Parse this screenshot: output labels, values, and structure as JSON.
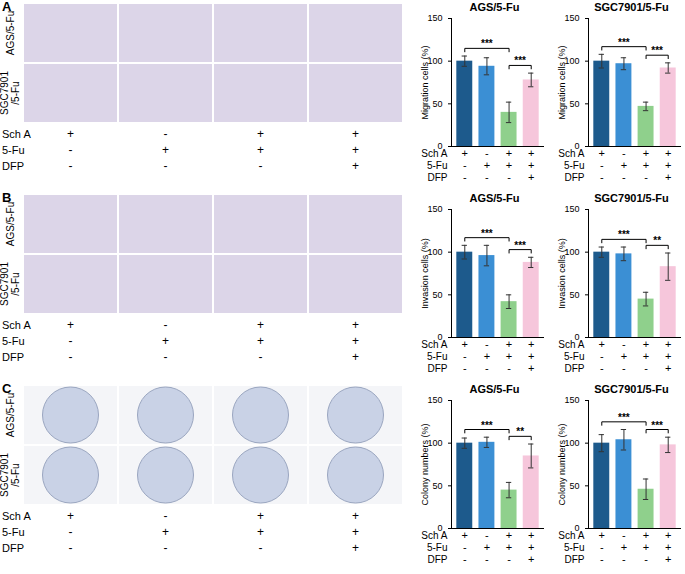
{
  "figure": {
    "panels": [
      {
        "label": "A",
        "image_rows": [
          [
            "AGS/5-Fu"
          ],
          [
            "SGC7901",
            "/5-Fu"
          ]
        ],
        "treatments": {
          "rows": [
            "Sch A",
            "5-Fu",
            "DFP"
          ],
          "marks": [
            [
              "+",
              "-",
              "+",
              "+"
            ],
            [
              "-",
              "+",
              "+",
              "+"
            ],
            [
              "-",
              "-",
              "-",
              "+"
            ]
          ]
        }
      },
      {
        "label": "B",
        "image_rows": [
          [
            "AGS/5-Fu"
          ],
          [
            "SGC7901",
            "/5-Fu"
          ]
        ],
        "treatments": {
          "rows": [
            "Sch A",
            "5-Fu",
            "DFP"
          ],
          "marks": [
            [
              "+",
              "-",
              "+",
              "+"
            ],
            [
              "-",
              "+",
              "+",
              "+"
            ],
            [
              "-",
              "-",
              "-",
              "+"
            ]
          ]
        }
      },
      {
        "label": "C",
        "image_rows": [
          [
            "AGS/5-Fu"
          ],
          [
            "SGC7901",
            "/5-Fu"
          ]
        ],
        "treatments": {
          "rows": [
            "Sch A",
            "5-Fu",
            "DFP"
          ],
          "marks": [
            [
              "+",
              "-",
              "+",
              "+"
            ],
            [
              "-",
              "+",
              "+",
              "+"
            ],
            [
              "-",
              "-",
              "-",
              "+"
            ]
          ]
        }
      }
    ]
  },
  "chart_data": [
    {
      "type": "bar",
      "title": "AGS/5-Fu",
      "y_label": "Migration cells (%)",
      "categories": [
        null,
        null,
        null,
        null
      ],
      "values": [
        100,
        94,
        40,
        78
      ],
      "errors": [
        6,
        10,
        12,
        8
      ],
      "colors": [
        "#1d5a8c",
        "#3b8fd4",
        "#8fd08c",
        "#f6c6db"
      ],
      "ylim": [
        0,
        150
      ],
      "yticks": [
        0,
        50,
        100,
        150
      ],
      "tick_labels": "y",
      "significance": [
        {
          "from": 0,
          "to": 2,
          "label": "***"
        },
        {
          "from": 2,
          "to": 3,
          "label": "***"
        }
      ],
      "treatments": {
        "rows": [
          "Sch A",
          "5-Fu",
          "DFP"
        ],
        "marks": [
          [
            "+",
            "-",
            "+",
            "+"
          ],
          [
            "-",
            "+",
            "+",
            "+"
          ],
          [
            "-",
            "-",
            "-",
            "+"
          ]
        ]
      }
    },
    {
      "type": "bar",
      "title": "SGC7901/5-Fu",
      "y_label": "Migration cells (%)",
      "categories": [
        null,
        null,
        null,
        null
      ],
      "values": [
        100,
        97,
        47,
        92
      ],
      "errors": [
        8,
        7,
        5,
        6
      ],
      "colors": [
        "#1d5a8c",
        "#3b8fd4",
        "#8fd08c",
        "#f6c6db"
      ],
      "ylim": [
        0,
        150
      ],
      "yticks": [
        0,
        50,
        100,
        150
      ],
      "tick_labels": "y",
      "significance": [
        {
          "from": 0,
          "to": 2,
          "label": "***"
        },
        {
          "from": 2,
          "to": 3,
          "label": "***"
        }
      ],
      "treatments": {
        "rows": [
          "Sch A",
          "5-Fu",
          "DFP"
        ],
        "marks": [
          [
            "+",
            "-",
            "+",
            "+"
          ],
          [
            "-",
            "+",
            "+",
            "+"
          ],
          [
            "-",
            "-",
            "-",
            "+"
          ]
        ]
      }
    },
    {
      "type": "bar",
      "title": "AGS/5-Fu",
      "y_label": "Invasion cells (%)",
      "categories": [
        null,
        null,
        null,
        null
      ],
      "values": [
        100,
        96,
        42,
        88
      ],
      "errors": [
        8,
        12,
        8,
        6
      ],
      "colors": [
        "#1d5a8c",
        "#3b8fd4",
        "#8fd08c",
        "#f6c6db"
      ],
      "ylim": [
        0,
        150
      ],
      "yticks": [
        0,
        50,
        100,
        150
      ],
      "tick_labels": "y",
      "significance": [
        {
          "from": 0,
          "to": 2,
          "label": "***"
        },
        {
          "from": 2,
          "to": 3,
          "label": "***"
        }
      ],
      "treatments": {
        "rows": [
          "Sch A",
          "5-Fu",
          "DFP"
        ],
        "marks": [
          [
            "+",
            "-",
            "+",
            "+"
          ],
          [
            "-",
            "+",
            "+",
            "+"
          ],
          [
            "-",
            "-",
            "-",
            "+"
          ]
        ]
      }
    },
    {
      "type": "bar",
      "title": "SGC7901/5-Fu",
      "y_label": "Invasion cells (%)",
      "categories": [
        null,
        null,
        null,
        null
      ],
      "values": [
        100,
        98,
        45,
        83
      ],
      "errors": [
        6,
        8,
        8,
        16
      ],
      "colors": [
        "#1d5a8c",
        "#3b8fd4",
        "#8fd08c",
        "#f6c6db"
      ],
      "ylim": [
        0,
        150
      ],
      "yticks": [
        0,
        50,
        100,
        150
      ],
      "tick_labels": "y",
      "significance": [
        {
          "from": 0,
          "to": 2,
          "label": "***"
        },
        {
          "from": 2,
          "to": 3,
          "label": "**"
        }
      ],
      "treatments": {
        "rows": [
          "Sch A",
          "5-Fu",
          "DFP"
        ],
        "marks": [
          [
            "+",
            "-",
            "+",
            "+"
          ],
          [
            "-",
            "+",
            "+",
            "+"
          ],
          [
            "-",
            "-",
            "-",
            "+"
          ]
        ]
      }
    },
    {
      "type": "bar",
      "title": "AGS/5-Fu",
      "y_label": "Colony numbers (%)",
      "categories": [
        null,
        null,
        null,
        null
      ],
      "values": [
        100,
        101,
        45,
        85
      ],
      "errors": [
        6,
        6,
        9,
        14
      ],
      "colors": [
        "#1d5a8c",
        "#3b8fd4",
        "#8fd08c",
        "#f6c6db"
      ],
      "ylim": [
        0,
        150
      ],
      "yticks": [
        0,
        50,
        100,
        150
      ],
      "tick_labels": "y",
      "significance": [
        {
          "from": 0,
          "to": 2,
          "label": "***"
        },
        {
          "from": 2,
          "to": 3,
          "label": "**"
        }
      ],
      "treatments": {
        "rows": [
          "Sch A",
          "5-Fu",
          "DFP"
        ],
        "marks": [
          [
            "+",
            "-",
            "+",
            "+"
          ],
          [
            "-",
            "+",
            "+",
            "+"
          ],
          [
            "-",
            "-",
            "-",
            "+"
          ]
        ]
      }
    },
    {
      "type": "bar",
      "title": "SGC7901/5-Fu",
      "y_label": "Colony numbers (%)",
      "categories": [
        null,
        null,
        null,
        null
      ],
      "values": [
        100,
        104,
        46,
        98
      ],
      "errors": [
        10,
        12,
        12,
        9
      ],
      "colors": [
        "#1d5a8c",
        "#3b8fd4",
        "#8fd08c",
        "#f6c6db"
      ],
      "ylim": [
        0,
        150
      ],
      "yticks": [
        0,
        50,
        100,
        150
      ],
      "tick_labels": "y",
      "significance": [
        {
          "from": 0,
          "to": 2,
          "label": "***"
        },
        {
          "from": 2,
          "to": 3,
          "label": "***"
        }
      ],
      "treatments": {
        "rows": [
          "Sch A",
          "5-Fu",
          "DFP"
        ],
        "marks": [
          [
            "+",
            "-",
            "+",
            "+"
          ],
          [
            "-",
            "+",
            "+",
            "+"
          ],
          [
            "-",
            "-",
            "-",
            "+"
          ]
        ]
      }
    }
  ]
}
